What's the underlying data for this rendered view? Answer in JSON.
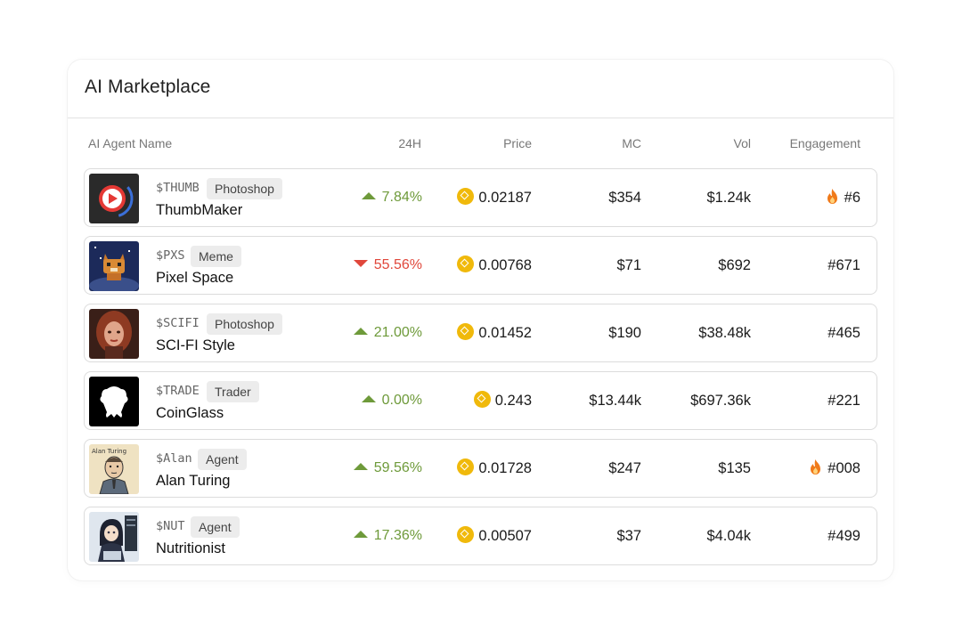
{
  "card": {
    "title": "AI Marketplace"
  },
  "columns": {
    "name": "AI Agent Name",
    "change": "24H",
    "price": "Price",
    "mc": "MC",
    "vol": "Vol",
    "engagement": "Engagement"
  },
  "colors": {
    "up": "#6e9a3a",
    "down": "#e0473b",
    "coin": "#f0b90b",
    "fire": "#f07a1a"
  },
  "rows": [
    {
      "ticker": "$THUMB",
      "tag": "Photoshop",
      "name": "ThumbMaker",
      "change": "7.84%",
      "direction": "up",
      "price": "0.02187",
      "mc": "$354",
      "vol": "$1.24k",
      "engagement": "#6",
      "hot": true,
      "avatar": "play-icon"
    },
    {
      "ticker": "$PXS",
      "tag": "Meme",
      "name": "Pixel Space",
      "change": "55.56%",
      "direction": "down",
      "price": "0.00768",
      "mc": "$71",
      "vol": "$692",
      "engagement": "#671",
      "hot": false,
      "avatar": "pixel-fox"
    },
    {
      "ticker": "$SCIFI",
      "tag": "Photoshop",
      "name": "SCI-FI Style",
      "change": "21.00%",
      "direction": "up",
      "price": "0.01452",
      "mc": "$190",
      "vol": "$38.48k",
      "engagement": "#465",
      "hot": false,
      "avatar": "portrait"
    },
    {
      "ticker": "$TRADE",
      "tag": "Trader",
      "name": "CoinGlass",
      "change": "0.00%",
      "direction": "up",
      "price": "0.243",
      "mc": "$13.44k",
      "vol": "$697.36k",
      "engagement": "#221",
      "hot": false,
      "avatar": "coinglass-logo"
    },
    {
      "ticker": "$Alan",
      "tag": "Agent",
      "name": "Alan Turing",
      "change": "59.56%",
      "direction": "up",
      "price": "0.01728",
      "mc": "$247",
      "vol": "$135",
      "engagement": "#008",
      "hot": true,
      "avatar": "alan-turing",
      "avatar_caption": "Alan Turing"
    },
    {
      "ticker": "$NUT",
      "tag": "Agent",
      "name": "Nutritionist",
      "change": "17.36%",
      "direction": "up",
      "price": "0.00507",
      "mc": "$37",
      "vol": "$4.04k",
      "engagement": "#499",
      "hot": false,
      "avatar": "anime-girl"
    }
  ]
}
